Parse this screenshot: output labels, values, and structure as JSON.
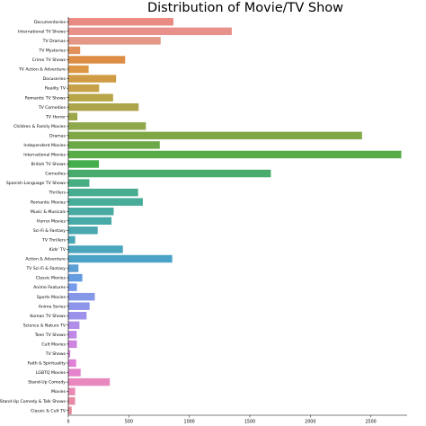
{
  "chart_data": {
    "type": "bar",
    "orientation": "horizontal",
    "title": "Distribution of Movie/TV Show",
    "xlabel": "",
    "ylabel": "",
    "xlim": [
      0,
      2800
    ],
    "xticks": [
      0,
      500,
      1000,
      1500,
      2000,
      2500
    ],
    "grid": false,
    "categories": [
      "Documentaries",
      "International TV Shows",
      "TV Dramas",
      "TV Mysteries",
      "Crime TV Shows",
      "TV Action & Adventure",
      "Docuseries",
      "Reality TV",
      "Romantic TV Shows",
      "TV Comedies",
      "TV Horror",
      "Children & Family Movies",
      "Dramas",
      "Independent Movies",
      "International Movies",
      "British TV Shows",
      "Comedies",
      "Spanish-Language TV Shows",
      "Thrillers",
      "Romantic Movies",
      "Music & Musicals",
      "Horror Movies",
      "Sci-Fi & Fantasy",
      "TV Thrillers",
      "Kids' TV",
      "Action & Adventure",
      "TV Sci-Fi & Fantasy",
      "Classic Movies",
      "Anime Features",
      "Sports Movies",
      "Anime Series",
      "Korean TV Shows",
      "Science & Nature TV",
      "Teen TV Shows",
      "Cult Movies",
      "TV Shows",
      "Faith & Spirituality",
      "LGBTQ Movies",
      "Stand-Up Comedy",
      "Movies",
      "Stand-Up Comedy & Talk Shows",
      "Classic & Cult TV"
    ],
    "values": [
      869,
      1351,
      763,
      98,
      470,
      168,
      395,
      255,
      370,
      581,
      75,
      641,
      2427,
      756,
      2752,
      253,
      1674,
      174,
      577,
      616,
      375,
      357,
      243,
      57,
      451,
      859,
      84,
      116,
      71,
      219,
      176,
      151,
      92,
      69,
      71,
      16,
      65,
      102,
      343,
      57,
      56,
      28
    ],
    "colors": [
      "#e98b82",
      "#e8918b",
      "#e49687",
      "#e1905c",
      "#dd8e46",
      "#dc9745",
      "#cf9c45",
      "#c6a147",
      "#b8a547",
      "#aca44a",
      "#9ea64a",
      "#8fa84b",
      "#7fa745",
      "#6ba948",
      "#57ac48",
      "#45ae4c",
      "#47ab6e",
      "#47ad82",
      "#48ad90",
      "#48ac99",
      "#48aaa2",
      "#48a9a9",
      "#4aa7b0",
      "#4aa7b7",
      "#4aa5bd",
      "#4aa3c6",
      "#5a9fd5",
      "#639ce0",
      "#769bea",
      "#8597e7",
      "#8e95ea",
      "#9d92eb",
      "#b08de7",
      "#bf87e5",
      "#cd83e0",
      "#d983df",
      "#e080d8",
      "#e584cc",
      "#e888bf",
      "#e88ab2",
      "#e88ba6",
      "#e8899b"
    ]
  }
}
